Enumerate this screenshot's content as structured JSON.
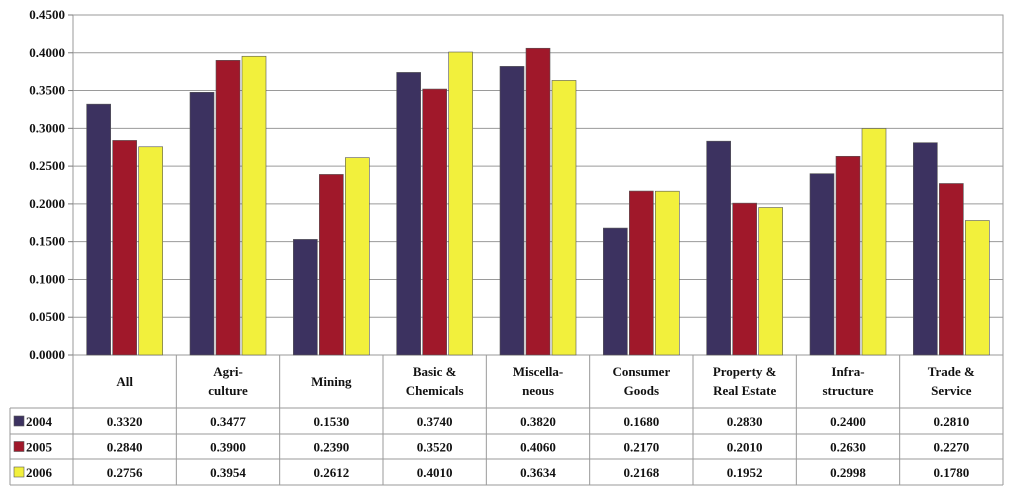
{
  "chart_data": {
    "type": "bar",
    "title": "",
    "xlabel": "",
    "ylabel": "",
    "ylim": [
      0,
      0.45
    ],
    "ytick_step": 0.05,
    "ytick_labels": [
      "0.0000",
      "0.0500",
      "0.1000",
      "0.1500",
      "0.2000",
      "0.2500",
      "0.3000",
      "0.3500",
      "0.4000",
      "0.4500"
    ],
    "grid": true,
    "legend_placement": "data-table",
    "categories": [
      [
        "All"
      ],
      [
        "Agri-",
        "culture"
      ],
      [
        "Mining"
      ],
      [
        "Basic &",
        "Chemicals"
      ],
      [
        "Miscella-",
        "neous"
      ],
      [
        "Consumer",
        "Goods"
      ],
      [
        "Property &",
        "Real Estate"
      ],
      [
        "Infra-",
        "structure"
      ],
      [
        "Trade &",
        "Service"
      ]
    ],
    "series": [
      {
        "name": "2004",
        "color": "#3c3260",
        "values": [
          0.332,
          0.3477,
          0.153,
          0.374,
          0.382,
          0.168,
          0.283,
          0.24,
          0.281
        ],
        "labels": [
          "0.3320",
          "0.3477",
          "0.1530",
          "0.3740",
          "0.3820",
          "0.1680",
          "0.2830",
          "0.2400",
          "0.2810"
        ]
      },
      {
        "name": "2005",
        "color": "#a0182a",
        "values": [
          0.284,
          0.39,
          0.239,
          0.352,
          0.406,
          0.217,
          0.201,
          0.263,
          0.227
        ],
        "labels": [
          "0.2840",
          "0.3900",
          "0.2390",
          "0.3520",
          "0.4060",
          "0.2170",
          "0.2010",
          "0.2630",
          "0.2270"
        ]
      },
      {
        "name": "2006",
        "color": "#f2f03c",
        "values": [
          0.2756,
          0.3954,
          0.2612,
          0.401,
          0.3634,
          0.2168,
          0.1952,
          0.2998,
          0.178
        ],
        "labels": [
          "0.2756",
          "0.3954",
          "0.2612",
          "0.4010",
          "0.3634",
          "0.2168",
          "0.1952",
          "0.2998",
          "0.1780"
        ]
      }
    ]
  }
}
